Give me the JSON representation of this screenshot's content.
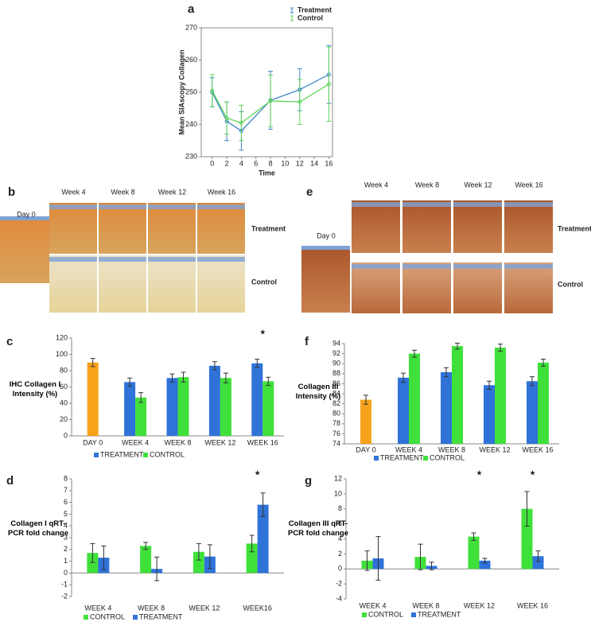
{
  "chart_data": [
    {
      "type": "line",
      "label": "a",
      "x_label": "Time",
      "y_label": "Mean SIAscopy Collagen",
      "x": [
        0,
        2,
        4,
        8,
        12,
        16
      ],
      "xlim": [
        -1.5,
        16.5
      ],
      "xticks": [
        0,
        2,
        4,
        6,
        8,
        10,
        12,
        14,
        16
      ],
      "ylim": [
        230,
        270
      ],
      "yticks": [
        230,
        240,
        250,
        260,
        270
      ],
      "legend": "top-right",
      "series": [
        {
          "name": "Treatment",
          "color": "#3d86c6",
          "values": [
            250,
            241,
            238,
            247.5,
            250.8,
            255.5
          ],
          "errors": [
            4.5,
            6,
            6,
            9,
            6.5,
            9
          ]
        },
        {
          "name": "Control",
          "color": "#62d65a",
          "values": [
            250.5,
            242,
            240.5,
            247.3,
            247,
            252.5
          ],
          "errors": [
            5,
            5,
            5.5,
            8,
            7,
            11.5
          ]
        }
      ]
    },
    {
      "type": "bar",
      "label": "c",
      "y_label": "IHC Collagen I Intensity (%)",
      "categories": [
        "DAY 0",
        "WEEK 4",
        "WEEK 8",
        "WEEK 12",
        "WEEK 16"
      ],
      "ylim": [
        0,
        120
      ],
      "yticks": [
        0,
        20,
        40,
        60,
        80,
        100,
        120
      ],
      "legend": "bottom",
      "star": "★",
      "significant": [
        false,
        false,
        false,
        false,
        true
      ],
      "series": [
        {
          "name": "TREATMENT",
          "color": "#2f73d9",
          "point_colors": [
            "#f7a21b",
            "#2f73d9",
            "#2f73d9",
            "#2f73d9",
            "#2f73d9"
          ],
          "values": [
            90,
            66,
            71,
            86,
            89
          ],
          "errors": [
            5,
            5,
            5,
            5,
            5
          ]
        },
        {
          "name": "CONTROL",
          "color": "#3fe03a",
          "values": [
            null,
            47,
            72,
            71,
            67
          ],
          "errors": [
            null,
            6,
            6,
            6,
            5
          ]
        }
      ]
    },
    {
      "type": "bar",
      "label": "f",
      "y_label": "Collagen III Intensity (%)",
      "categories": [
        "DAY 0",
        "WEEK 4",
        "WEEK 8",
        "WEEK 12",
        "WEEK 16"
      ],
      "ylim": [
        74,
        94
      ],
      "yticks": [
        74,
        76,
        78,
        80,
        82,
        84,
        86,
        88,
        90,
        92,
        94
      ],
      "legend": "bottom",
      "series": [
        {
          "name": "TREATMENT",
          "color": "#2f73d9",
          "point_colors": [
            "#f7a21b",
            "#2f73d9",
            "#2f73d9",
            "#2f73d9",
            "#2f73d9"
          ],
          "values": [
            82.8,
            87.2,
            88.3,
            85.7,
            86.5
          ],
          "errors": [
            0.9,
            0.9,
            0.9,
            0.8,
            0.9
          ]
        },
        {
          "name": "CONTROL",
          "color": "#3fe03a",
          "values": [
            null,
            92,
            93.5,
            93.2,
            90.2
          ],
          "errors": [
            null,
            0.7,
            0.6,
            0.7,
            0.7
          ]
        }
      ]
    },
    {
      "type": "bar",
      "label": "d",
      "y_label": "Collagen I qRT-PCR fold change",
      "categories": [
        "WEEK 4",
        "WEEK 8",
        "WEEK 12",
        "WEEK16"
      ],
      "ylim": [
        -2,
        8
      ],
      "yticks": [
        -2,
        -1,
        0,
        1,
        2,
        3,
        4,
        5,
        6,
        7,
        8
      ],
      "legend": "bottom",
      "star": "★",
      "significant": [
        false,
        false,
        false,
        true
      ],
      "series": [
        {
          "name": "CONTROL",
          "color": "#3fe03a",
          "values": [
            1.7,
            2.3,
            1.8,
            2.5
          ],
          "errors": [
            0.8,
            0.3,
            0.7,
            0.7
          ]
        },
        {
          "name": "TREATMENT",
          "color": "#2f73d9",
          "values": [
            1.3,
            0.35,
            1.4,
            5.8
          ],
          "errors": [
            1,
            1,
            1,
            1
          ]
        }
      ]
    },
    {
      "type": "bar",
      "label": "g",
      "y_label": "Collagen III qRT-PCR fold change",
      "categories": [
        "WEEK 4",
        "WEEK 8",
        "WEEK 12",
        "WEEK 16"
      ],
      "ylim": [
        -4,
        12
      ],
      "yticks": [
        -4,
        -2,
        0,
        2,
        4,
        6,
        8,
        10,
        12
      ],
      "legend": "bottom",
      "star": "★",
      "significant": [
        false,
        false,
        true,
        true
      ],
      "series": [
        {
          "name": "CONTROL",
          "color": "#3fe03a",
          "values": [
            1.1,
            1.6,
            4.3,
            8.0
          ],
          "errors": [
            1.3,
            1.7,
            0.5,
            2.3
          ]
        },
        {
          "name": "TREATMENT",
          "color": "#2f73d9",
          "values": [
            1.4,
            0.4,
            1.1,
            1.7
          ],
          "errors": [
            2.9,
            0.5,
            0.3,
            0.7
          ]
        }
      ]
    }
  ],
  "image_panels": [
    {
      "label": "b",
      "day0": "Day 0",
      "columns": [
        "Week 4",
        "Week 8",
        "Week 12",
        "Week 16"
      ],
      "rows": [
        "Treatment",
        "Control"
      ]
    },
    {
      "label": "e",
      "day0": "Day 0",
      "columns": [
        "Week 4",
        "Week 8",
        "Week 12",
        "Week 16"
      ],
      "rows": [
        "Treatment",
        "Control"
      ]
    }
  ]
}
